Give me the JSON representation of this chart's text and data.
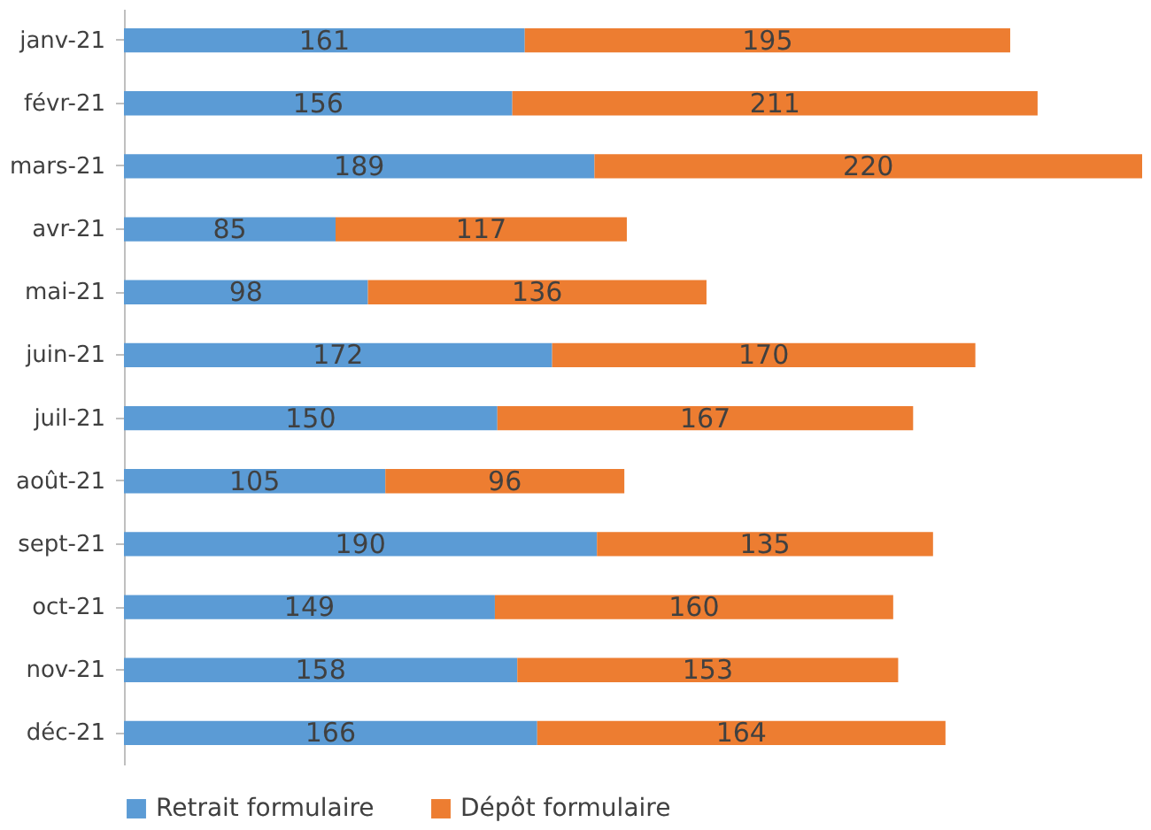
{
  "chart_data": {
    "type": "bar",
    "orientation": "horizontal",
    "stacked": true,
    "data_labels": true,
    "legend": "bottom",
    "grid": false,
    "categories": [
      "janv-21",
      "févr-21",
      "mars-21",
      "avr-21",
      "mai-21",
      "juin-21",
      "juil-21",
      "août-21",
      "sept-21",
      "oct-21",
      "nov-21",
      "déc-21"
    ],
    "series": [
      {
        "name": "Retrait formulaire",
        "color": "#5b9bd5",
        "values": [
          161,
          156,
          189,
          85,
          98,
          172,
          150,
          105,
          190,
          149,
          158,
          166
        ]
      },
      {
        "name": "Dépôt formulaire",
        "color": "#ed7d31",
        "values": [
          195,
          211,
          220,
          117,
          136,
          170,
          167,
          96,
          135,
          160,
          153,
          164
        ]
      }
    ]
  }
}
